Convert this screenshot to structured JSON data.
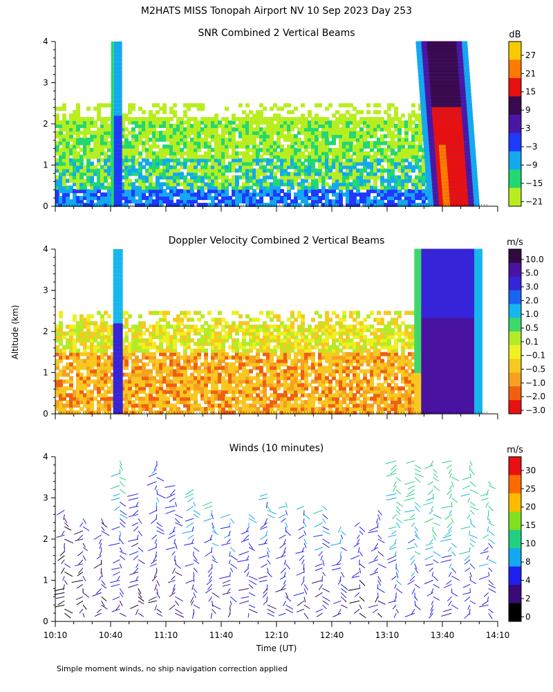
{
  "figure": {
    "title": "M2HATS MISS Tonopah Airport NV  10 Sep 2023 Day 253",
    "ylabel": "Altitude (km)",
    "xlabel": "Time (UT)",
    "footnote": "Simple moment winds, no ship navigation correction applied",
    "time_ticks": [
      "10:10",
      "10:40",
      "11:10",
      "11:40",
      "12:10",
      "12:40",
      "13:10",
      "13:40",
      "14:10"
    ],
    "altitude_ticks": [
      "0",
      "1",
      "2",
      "3",
      "4"
    ]
  },
  "chart_data": [
    {
      "type": "heatmap",
      "title": "SNR Combined 2 Vertical Beams",
      "units": "dB",
      "xlim": [
        "10:10",
        "14:10"
      ],
      "ylim": [
        0,
        4
      ],
      "colorbar_ticks": [
        "27",
        "21",
        "15",
        "9",
        "3",
        "−3",
        "−9",
        "−15",
        "−21"
      ],
      "colorbar_colors": [
        "#f7c900",
        "#ff7a00",
        "#e81010",
        "#3a0a4e",
        "#4a16a8",
        "#1f39ff",
        "#13a8f0",
        "#22d870",
        "#b8ee20"
      ],
      "features": [
        {
          "name": "boundary layer echo",
          "time_start": "10:10",
          "time_end": "13:35",
          "altitude_top_km": 2.5,
          "snr_db_range": [
            -21,
            3
          ]
        },
        {
          "name": "vertical streak",
          "time": "10:44",
          "altitude_top_km": 4.0,
          "snr_db_range": [
            -15,
            3
          ]
        },
        {
          "name": "precipitation shaft",
          "time_start": "13:30",
          "time_end": "13:55",
          "altitude_top_km": 4.0,
          "snr_db_range": [
            9,
            27
          ]
        }
      ]
    },
    {
      "type": "heatmap",
      "title": "Doppler Velocity Combined 2 Vertical Beams",
      "units": "m/s",
      "xlim": [
        "10:10",
        "14:10"
      ],
      "ylim": [
        0,
        4
      ],
      "colorbar_ticks": [
        "10.0",
        "5.0",
        "3.0",
        "2.0",
        "1.0",
        "0.5",
        "0.1",
        "−0.1",
        "−0.5",
        "−1.0",
        "−2.0",
        "−3.0"
      ],
      "colorbar_colors": [
        "#300a40",
        "#4a12a0",
        "#3524d8",
        "#1a64f2",
        "#18b6ee",
        "#3cd86a",
        "#b2ec28",
        "#eef020",
        "#f8c820",
        "#f6a020",
        "#f06010",
        "#e81010"
      ],
      "features": [
        {
          "name": "boundary layer echo",
          "time_start": "10:10",
          "time_end": "13:35",
          "altitude_top_km": 2.5,
          "velocity_ms_range": [
            -1.0,
            0.5
          ]
        },
        {
          "name": "vertical streak",
          "time": "10:44",
          "altitude_top_km": 4.0,
          "velocity_ms_range": [
            2.0,
            5.0
          ]
        },
        {
          "name": "precipitation shaft",
          "time_start": "13:30",
          "time_end": "13:55",
          "altitude_top_km": 4.0,
          "velocity_ms_range": [
            3.0,
            10.0
          ]
        }
      ]
    },
    {
      "type": "scatter",
      "title": "Winds (10 minutes)",
      "units": "m/s",
      "xlim": [
        "10:10",
        "14:10"
      ],
      "ylim": [
        0,
        4
      ],
      "colorbar_ticks": [
        "30",
        "25",
        "20",
        "15",
        "10",
        "8",
        "4",
        "2",
        "0"
      ],
      "colorbar_colors": [
        "#e81010",
        "#ff6a00",
        "#ffbb00",
        "#80e020",
        "#20d080",
        "#13a8f0",
        "#1f1ff0",
        "#3a0a78",
        "#000000"
      ],
      "x": [
        "10:15",
        "10:25",
        "10:35",
        "10:45",
        "10:55",
        "11:05",
        "11:15",
        "11:25",
        "11:35",
        "11:45",
        "11:55",
        "12:05",
        "12:15",
        "12:25",
        "12:35",
        "12:45",
        "12:55",
        "13:05",
        "13:15",
        "13:25",
        "13:35",
        "13:45",
        "13:55",
        "14:05"
      ],
      "profile_top_km": [
        2.8,
        2.6,
        2.6,
        4.0,
        3.2,
        4.0,
        3.4,
        3.3,
        3.0,
        2.7,
        2.7,
        3.2,
        3.0,
        2.9,
        2.9,
        2.4,
        2.5,
        2.8,
        4.0,
        4.0,
        4.0,
        4.0,
        4.0,
        3.5
      ],
      "wind_speed_ms_typical": [
        4,
        4,
        5,
        8,
        6,
        6,
        6,
        8,
        8,
        8,
        8,
        8,
        8,
        8,
        8,
        8,
        6,
        6,
        10,
        10,
        10,
        10,
        10,
        10
      ]
    }
  ]
}
